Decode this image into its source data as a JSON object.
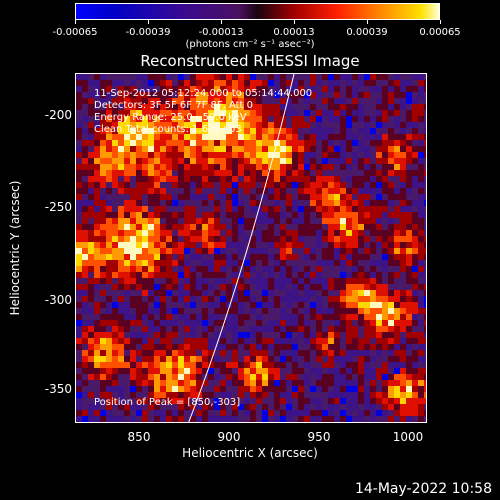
{
  "colorbar": {
    "tick_labels": [
      "-0.00065",
      "-0.00039",
      "-0.00013",
      "0.00013",
      "0.00039",
      "0.00065"
    ],
    "units": "(photons cm⁻² s⁻¹ asec⁻²)"
  },
  "title": "Reconstructed RHESSI Image",
  "info": {
    "time_range": "11-Sep-2012 05:12:24.000 to 05:14:44.000",
    "detectors": "Detectors: 3F 5F 6F 7F 8F, Att 0",
    "energy_range": "Energy Range: 25.0 - 50.0 keV",
    "clean": "Clean     Total counts: 1.63E+03",
    "peak": "Position of Peak = [850,-303]"
  },
  "axes": {
    "x_title": "Heliocentric X (arcsec)",
    "y_title": "Heliocentric Y (arcsec)",
    "x_ticks": [
      "850",
      "900",
      "950",
      "1000"
    ],
    "y_ticks": [
      "-200",
      "-250",
      "-300",
      "-350"
    ]
  },
  "footer": {
    "date": "14-May-2022 10:58"
  },
  "colors": {
    "background": "#000000",
    "foreground": "#ffffff",
    "limb": "#ffffff"
  }
}
